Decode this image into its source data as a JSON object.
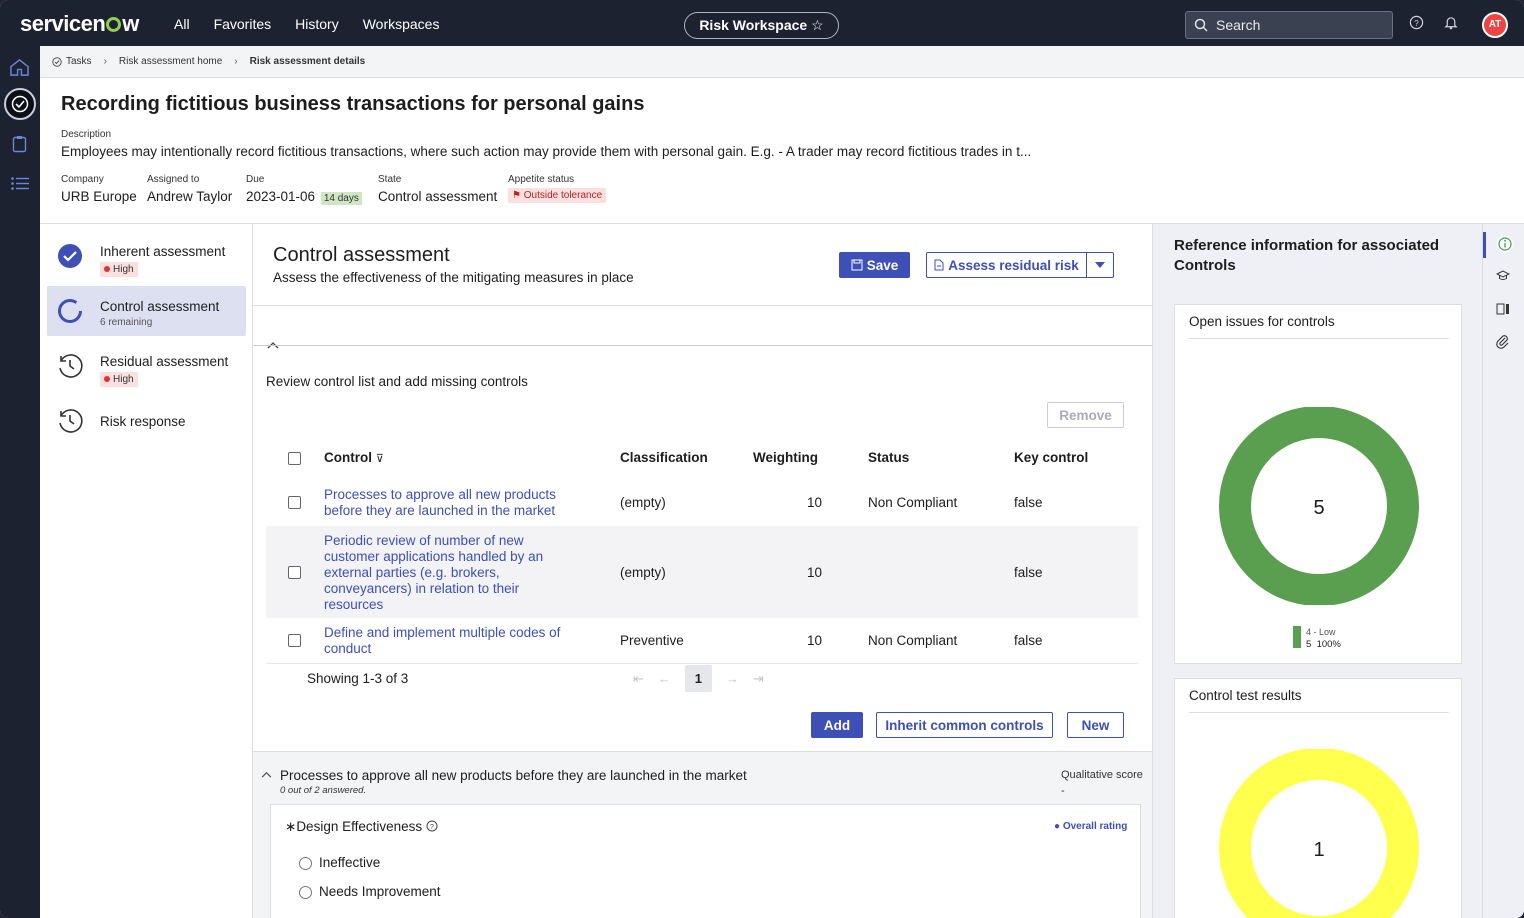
{
  "topbar": {
    "logo": "servicenow",
    "nav": [
      "All",
      "Favorites",
      "History",
      "Workspaces"
    ],
    "workspace": "Risk Workspace",
    "search_placeholder": "Search",
    "avatar": "AT"
  },
  "breadcrumb": [
    "Tasks",
    "Risk assessment home",
    "Risk assessment details"
  ],
  "record": {
    "title": "Recording fictitious business transactions for personal gains",
    "description_label": "Description",
    "description": "Employees may intentionally record fictitious transactions, where such action may provide them with personal gain. E.g. - A trader may record fictitious trades in t...",
    "company_label": "Company",
    "company": "URB Europe",
    "assigned_label": "Assigned to",
    "assigned": "Andrew Taylor",
    "due_label": "Due",
    "due": "2023-01-06",
    "due_badge": "14 days",
    "state_label": "State",
    "state": "Control assessment",
    "appetite_label": "Appetite status",
    "appetite": "Outside tolerance"
  },
  "steps": [
    {
      "name": "Inherent assessment",
      "badge": "High"
    },
    {
      "name": "Control assessment",
      "sub": "6 remaining"
    },
    {
      "name": "Residual assessment",
      "badge": "High"
    },
    {
      "name": "Risk response"
    }
  ],
  "main": {
    "title": "Control assessment",
    "subtitle": "Assess the effectiveness of the mitigating measures in place",
    "save": "Save",
    "assess": "Assess residual risk",
    "review": "Review control list and add missing controls",
    "remove": "Remove",
    "columns": [
      "Control",
      "Classification",
      "Weighting",
      "Status",
      "Key control"
    ],
    "rows": [
      {
        "control": "Processes to approve all new products before they are launched in the market",
        "classification": "(empty)",
        "weighting": "10",
        "status": "Non Compliant",
        "key": "false"
      },
      {
        "control": "Periodic review of number of new customer applications handled by an external parties (e.g. brokers, conveyancers) in relation to their resources",
        "classification": "(empty)",
        "weighting": "10",
        "status": "",
        "key": "false"
      },
      {
        "control": "Define and implement multiple codes of conduct",
        "classification": "Preventive",
        "weighting": "10",
        "status": "Non Compliant",
        "key": "false"
      }
    ],
    "showing": "Showing 1-3 of 3",
    "page": "1",
    "add": "Add",
    "inherit": "Inherit common controls",
    "new": "New",
    "question_block": {
      "title": "Processes to approve all new products before they are launched in the market",
      "answered": "0 out of 2 answered.",
      "score_label": "Qualitative score",
      "score": "-",
      "question": "Design Effectiveness",
      "required_mark": "∗",
      "overall": "Overall rating",
      "options": [
        "Ineffective",
        "Needs Improvement"
      ]
    }
  },
  "ref": {
    "title": "Reference information for associated Controls",
    "card1_title": "Open issues for controls",
    "card1_value": "5",
    "card1_legend_label": "4 - Low",
    "card1_legend_count": "5",
    "card1_legend_pct": "100%",
    "card1_color": "#5a9e4f",
    "card2_title": "Control test results",
    "card2_value": "1",
    "card2_color": "#ffff4d"
  }
}
